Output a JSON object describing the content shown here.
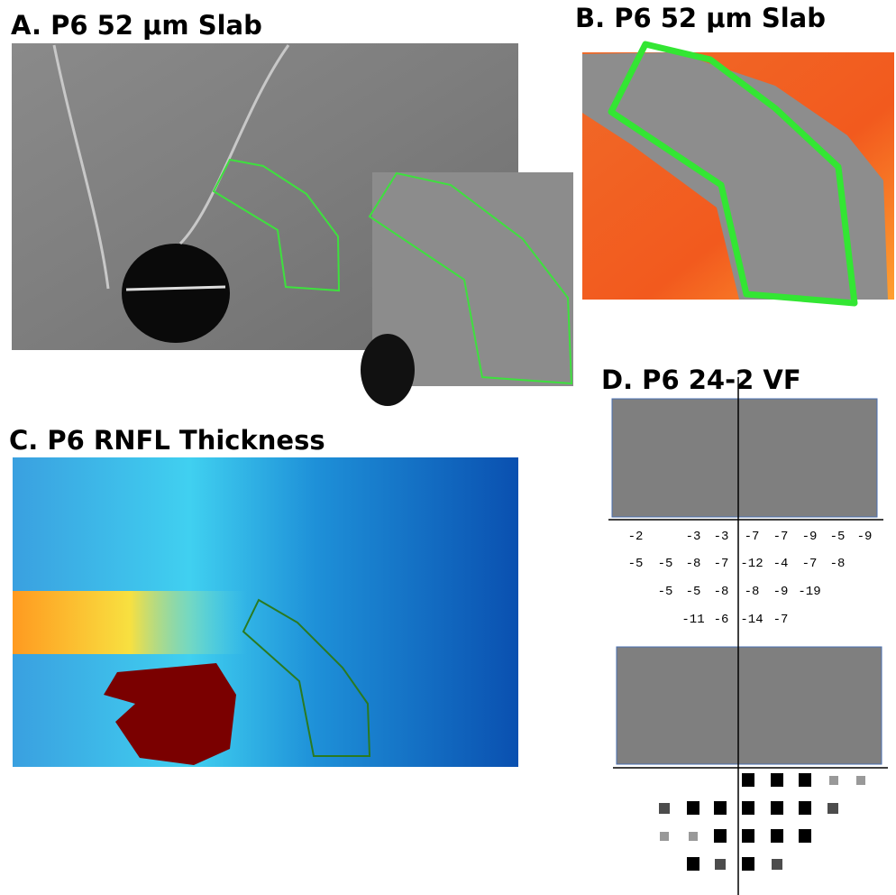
{
  "panels": {
    "a": {
      "title": "A. P6 52 μm Slab"
    },
    "b": {
      "title": "B. P6 52 μm Slab"
    },
    "c": {
      "title": "C. P6 RNFL Thickness"
    },
    "d": {
      "title": "D. P6 24-2 VF",
      "rows": [
        [
          -2,
          null,
          -3,
          -3,
          -7,
          -7,
          -9,
          -5,
          -9
        ],
        [
          -5,
          -5,
          -8,
          -7,
          -12,
          -4,
          -7,
          -8,
          null
        ],
        [
          null,
          -5,
          -5,
          -8,
          -8,
          -9,
          -19,
          null,
          null
        ],
        [
          null,
          null,
          -11,
          -6,
          -14,
          -7,
          null,
          null,
          null
        ]
      ]
    }
  }
}
